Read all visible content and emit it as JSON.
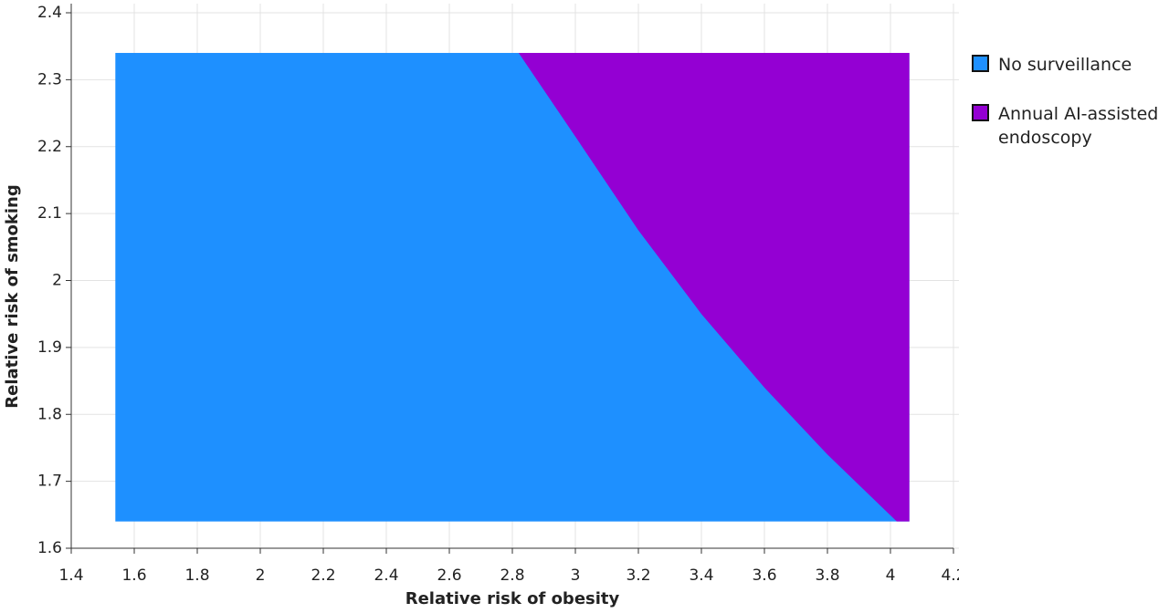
{
  "chart_data": {
    "type": "region",
    "xlabel": "Relative risk of obesity",
    "ylabel": "Relative risk of smoking",
    "xlim": [
      1.4,
      4.2
    ],
    "ylim": [
      1.6,
      2.4
    ],
    "xticks": [
      1.4,
      1.6,
      1.8,
      2,
      2.2,
      2.4,
      2.6,
      2.8,
      3,
      3.2,
      3.4,
      3.6,
      3.8,
      4,
      4.2
    ],
    "yticks": [
      1.6,
      1.7,
      1.8,
      1.9,
      2,
      2.1,
      2.2,
      2.3,
      2.4
    ],
    "grid": true,
    "region_x": [
      1.54,
      4.06
    ],
    "region_y": [
      1.64,
      2.34
    ],
    "boundary": {
      "x": [
        2.82,
        3.0,
        3.2,
        3.4,
        3.6,
        3.8,
        4.02
      ],
      "y": [
        2.34,
        2.215,
        2.075,
        1.95,
        1.84,
        1.74,
        1.64
      ]
    },
    "series": [
      {
        "name": "No surveillance",
        "color": "#1e90ff"
      },
      {
        "name": "Annual AI-assisted endoscopy",
        "color": "#9400d3"
      }
    ]
  }
}
